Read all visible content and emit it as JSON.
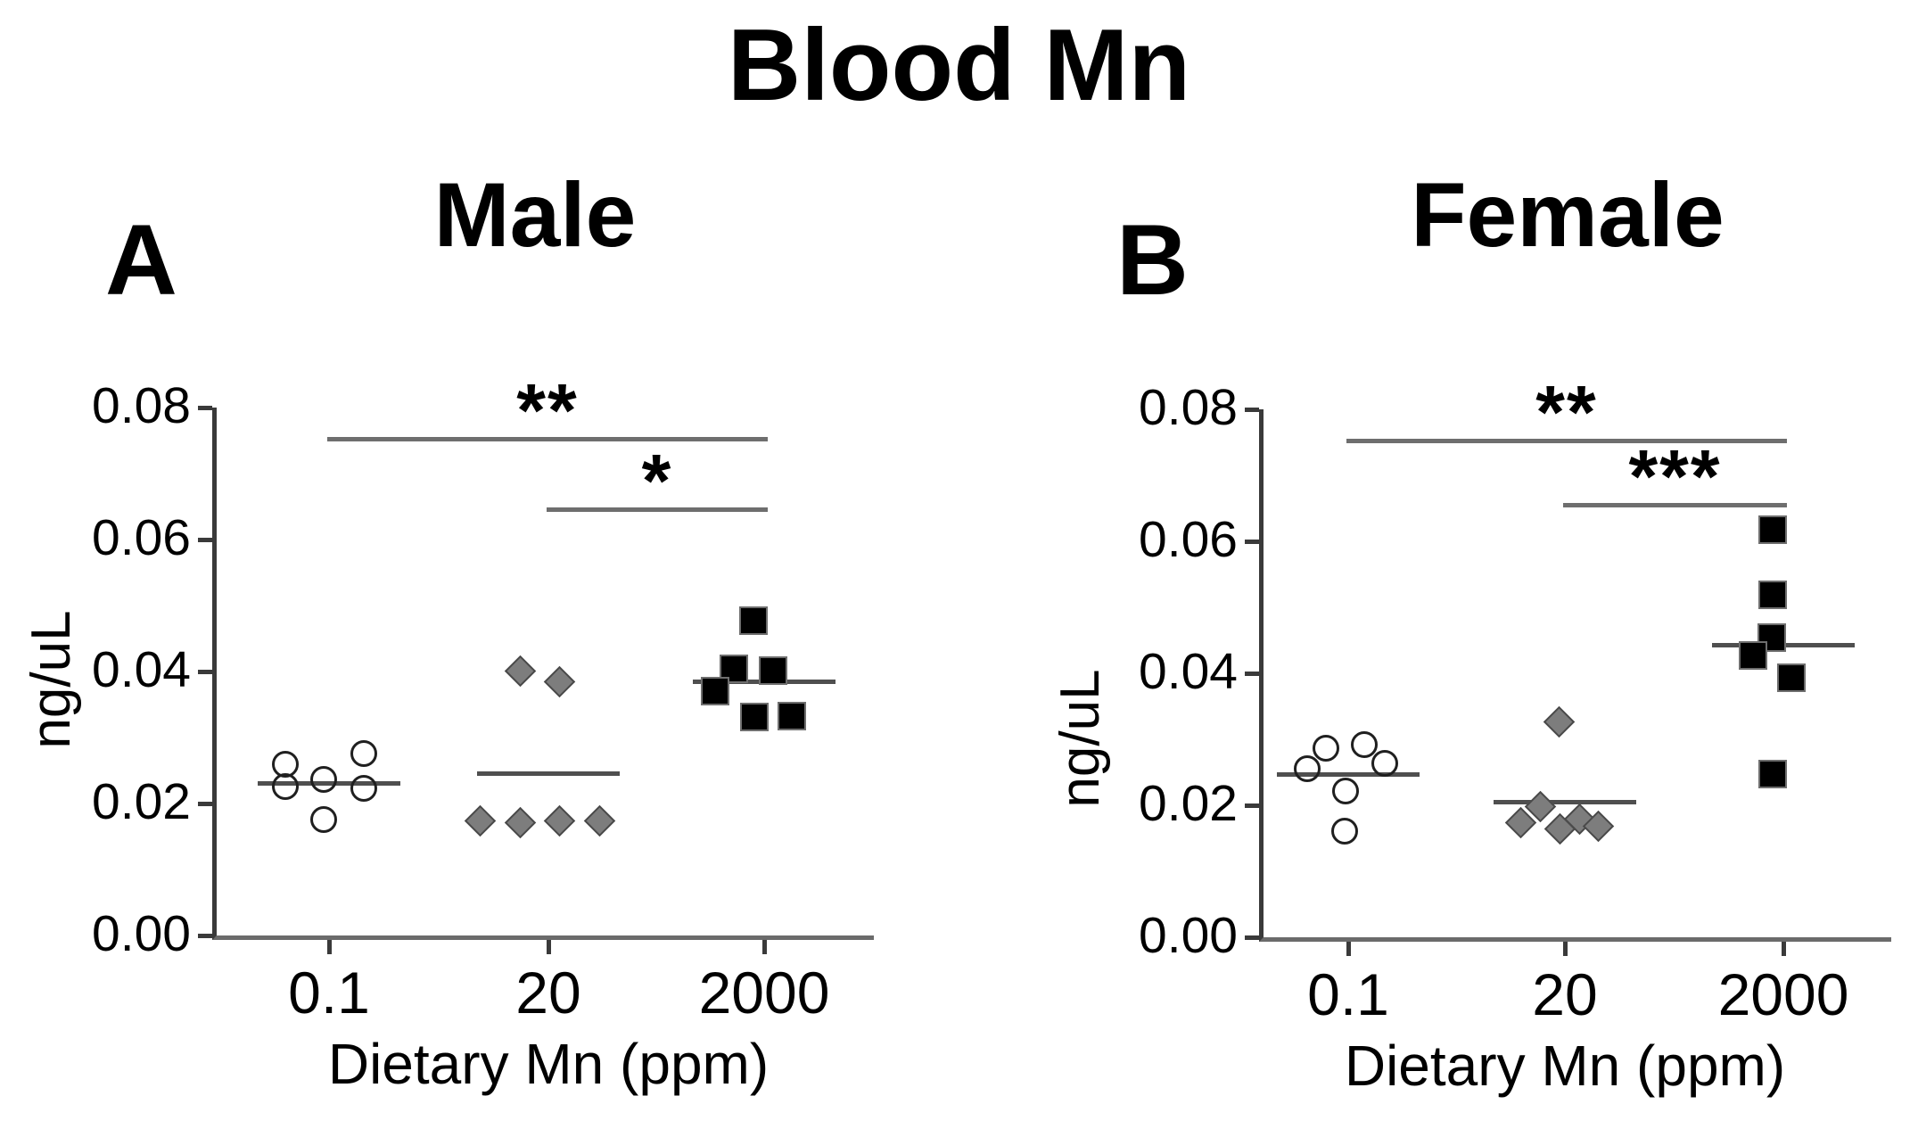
{
  "figure": {
    "title": "Blood Mn",
    "background": "#ffffff",
    "colors": {
      "open_marker_outline": "#1f1f1f",
      "gray_marker_fill": "#7d7d7d",
      "black_marker_fill": "#000000",
      "median_line": "#4f4f4f",
      "sig_bar": "#6e6e6e",
      "axis": "#3a3a3a"
    }
  },
  "chart_data": [
    {
      "type": "scatter",
      "panel_label": "A",
      "title": "Male",
      "xlabel": "Dietary Mn (ppm)",
      "ylabel": "ng/uL",
      "ylim": [
        0,
        0.08
      ],
      "grid": false,
      "yticks": [
        {
          "label": "0.00",
          "value": 0.0
        },
        {
          "label": "0.02",
          "value": 0.02
        },
        {
          "label": "0.04",
          "value": 0.04
        },
        {
          "label": "0.06",
          "value": 0.06
        },
        {
          "label": "0.08",
          "value": 0.08
        }
      ],
      "categories": [
        "0.1",
        "20",
        "2000"
      ],
      "groups": [
        {
          "category": "0.1",
          "marker": "circle",
          "center_line": 0.0231,
          "points": [
            {
              "dx": -49,
              "y": 0.026
            },
            {
              "dx": -49,
              "y": 0.0226
            },
            {
              "dx": -6,
              "y": 0.0236
            },
            {
              "dx": 39,
              "y": 0.0276
            },
            {
              "dx": 39,
              "y": 0.0223
            },
            {
              "dx": -6,
              "y": 0.0176
            }
          ]
        },
        {
          "category": "20",
          "marker": "diamond",
          "center_line": 0.0246,
          "points": [
            {
              "dx": -32,
              "y": 0.0401
            },
            {
              "dx": 12,
              "y": 0.0385
            },
            {
              "dx": -77,
              "y": 0.0174
            },
            {
              "dx": -32,
              "y": 0.0171
            },
            {
              "dx": 12,
              "y": 0.0174
            },
            {
              "dx": 57,
              "y": 0.0174
            }
          ]
        },
        {
          "category": "2000",
          "marker": "square",
          "center_line": 0.0385,
          "points": [
            {
              "dx": -12,
              "y": 0.0477
            },
            {
              "dx": -34,
              "y": 0.0404
            },
            {
              "dx": 10,
              "y": 0.0401
            },
            {
              "dx": -55,
              "y": 0.037
            },
            {
              "dx": -11,
              "y": 0.0331
            },
            {
              "dx": 31,
              "y": 0.0332
            }
          ]
        }
      ],
      "sig_bars": [
        {
          "from": 0,
          "to": 2,
          "label": "**",
          "y": 0.0755
        },
        {
          "from": 1,
          "to": 2,
          "label": "*",
          "y": 0.0648
        }
      ]
    },
    {
      "type": "scatter",
      "panel_label": "B",
      "title": "Female",
      "xlabel": "Dietary Mn (ppm)",
      "ylabel": "ng/uL",
      "ylim": [
        0,
        0.08
      ],
      "grid": false,
      "yticks": [
        {
          "label": "0.00",
          "value": 0.0
        },
        {
          "label": "0.02",
          "value": 0.02
        },
        {
          "label": "0.04",
          "value": 0.04
        },
        {
          "label": "0.06",
          "value": 0.06
        },
        {
          "label": "0.08",
          "value": 0.08
        }
      ],
      "categories": [
        "0.1",
        "20",
        "2000"
      ],
      "groups": [
        {
          "category": "0.1",
          "marker": "circle",
          "center_line": 0.0247,
          "points": [
            {
              "dx": -25,
              "y": 0.0286
            },
            {
              "dx": 18,
              "y": 0.0292
            },
            {
              "dx": -46,
              "y": 0.0256
            },
            {
              "dx": 41,
              "y": 0.0263
            },
            {
              "dx": -3,
              "y": 0.0222
            },
            {
              "dx": -4,
              "y": 0.0161
            }
          ]
        },
        {
          "category": "20",
          "marker": "diamond",
          "center_line": 0.0205,
          "points": [
            {
              "dx": -7,
              "y": 0.0327
            },
            {
              "dx": -28,
              "y": 0.0198
            },
            {
              "dx": -50,
              "y": 0.0174
            },
            {
              "dx": -6,
              "y": 0.0164
            },
            {
              "dx": 16,
              "y": 0.0179
            },
            {
              "dx": 37,
              "y": 0.0168
            }
          ]
        },
        {
          "category": "2000",
          "marker": "square",
          "center_line": 0.0443,
          "points": [
            {
              "dx": -12,
              "y": 0.0618
            },
            {
              "dx": -12,
              "y": 0.0519
            },
            {
              "dx": -13,
              "y": 0.0454
            },
            {
              "dx": -34,
              "y": 0.0427
            },
            {
              "dx": 9,
              "y": 0.0393
            },
            {
              "dx": -12,
              "y": 0.0247
            }
          ]
        }
      ],
      "sig_bars": [
        {
          "from": 0,
          "to": 2,
          "label": "**",
          "y": 0.0755
        },
        {
          "from": 1,
          "to": 2,
          "label": "***",
          "y": 0.0658
        }
      ]
    }
  ]
}
